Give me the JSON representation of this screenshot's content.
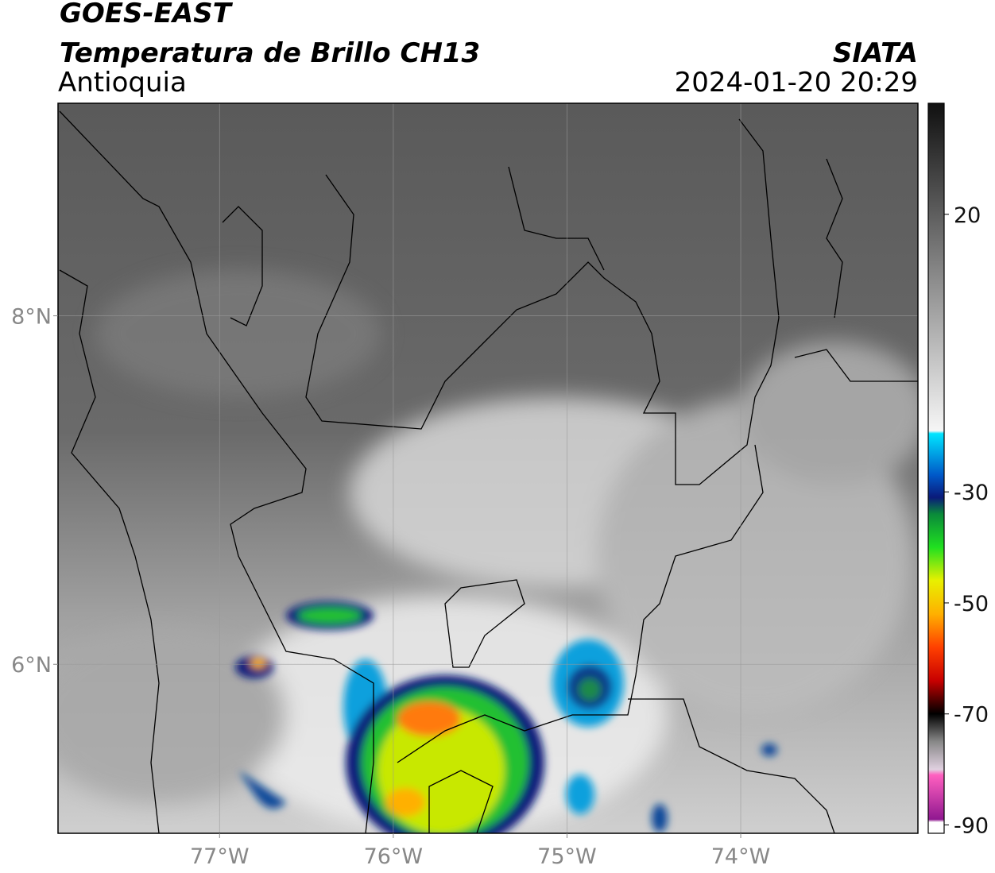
{
  "header": {
    "title": "GOES-EAST",
    "subtitle": "Temperatura de Brillo CH13",
    "region": "Antioquia",
    "source": "SIATA",
    "datetime": "2024-01-20 20:29"
  },
  "map": {
    "xlim": [
      -77.93,
      -72.98
    ],
    "ylim": [
      5.03,
      9.22
    ],
    "xticks": [
      {
        "value": -77,
        "label": "77°W"
      },
      {
        "value": -76,
        "label": "76°W"
      },
      {
        "value": -75,
        "label": "75°W"
      },
      {
        "value": -74,
        "label": "74°W"
      }
    ],
    "yticks": [
      {
        "value": 6,
        "label": "6°N"
      },
      {
        "value": 8,
        "label": "8°N"
      }
    ],
    "grid": true
  },
  "colorbar": {
    "lim": [
      -91.5,
      40
    ],
    "ticks": [
      20,
      -30,
      -50,
      -70,
      -90
    ],
    "stops": [
      {
        "value": 40,
        "color": "#101010"
      },
      {
        "value": 20,
        "color": "#5e5e5e"
      },
      {
        "value": -19,
        "color": "#f6f6f6"
      },
      {
        "value": -19.5,
        "color": "#00e5ff"
      },
      {
        "value": -27,
        "color": "#0058c8"
      },
      {
        "value": -31,
        "color": "#0a1a7a"
      },
      {
        "value": -34,
        "color": "#0a8a3a"
      },
      {
        "value": -40,
        "color": "#20e020"
      },
      {
        "value": -46,
        "color": "#e8f000"
      },
      {
        "value": -52,
        "color": "#ffb000"
      },
      {
        "value": -58,
        "color": "#ff4000"
      },
      {
        "value": -64,
        "color": "#c80000"
      },
      {
        "value": -68,
        "color": "#400000"
      },
      {
        "value": -70,
        "color": "#000000"
      },
      {
        "value": -75,
        "color": "#888888"
      },
      {
        "value": -80,
        "color": "#e0d0e0"
      },
      {
        "value": -81,
        "color": "#ff60c0"
      },
      {
        "value": -89,
        "color": "#901890"
      },
      {
        "value": -89.5,
        "color": "#ffffff"
      }
    ]
  }
}
